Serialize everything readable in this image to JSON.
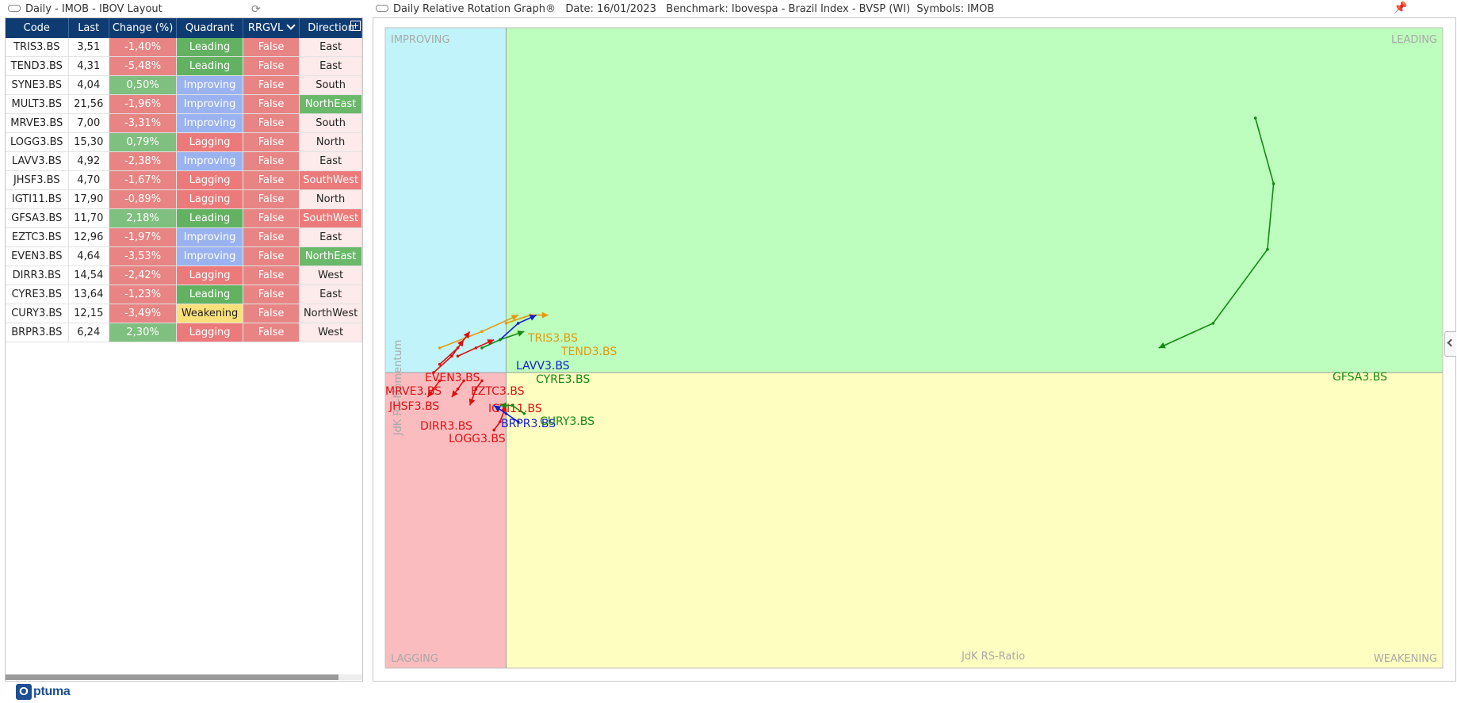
{
  "left_panel": {
    "title": "Daily - IMOB - IBOV Layout",
    "icon": "layout-icon",
    "refresh_icon": "refresh-icon",
    "columns": [
      "Code",
      "Last",
      "Change (%)",
      "Quadrant",
      "RRGVL",
      "Direction"
    ],
    "rows": [
      {
        "code": "TRIS3.BS",
        "last": "3,51",
        "change": "-1,40%",
        "quadrant": "Leading",
        "rrgvl": "False",
        "direction": "East"
      },
      {
        "code": "TEND3.BS",
        "last": "4,31",
        "change": "-5,48%",
        "quadrant": "Leading",
        "rrgvl": "False",
        "direction": "East"
      },
      {
        "code": "SYNE3.BS",
        "last": "4,04",
        "change": "0,50%",
        "quadrant": "Improving",
        "rrgvl": "False",
        "direction": "South"
      },
      {
        "code": "MULT3.BS",
        "last": "21,56",
        "change": "-1,96%",
        "quadrant": "Improving",
        "rrgvl": "False",
        "direction": "NorthEast"
      },
      {
        "code": "MRVE3.BS",
        "last": "7,00",
        "change": "-3,31%",
        "quadrant": "Improving",
        "rrgvl": "False",
        "direction": "South"
      },
      {
        "code": "LOGG3.BS",
        "last": "15,30",
        "change": "0,79%",
        "quadrant": "Lagging",
        "rrgvl": "False",
        "direction": "North"
      },
      {
        "code": "LAVV3.BS",
        "last": "4,92",
        "change": "-2,38%",
        "quadrant": "Improving",
        "rrgvl": "False",
        "direction": "East"
      },
      {
        "code": "JHSF3.BS",
        "last": "4,70",
        "change": "-1,67%",
        "quadrant": "Lagging",
        "rrgvl": "False",
        "direction": "SouthWest"
      },
      {
        "code": "IGTI11.BS",
        "last": "17,90",
        "change": "-0,89%",
        "quadrant": "Lagging",
        "rrgvl": "False",
        "direction": "North"
      },
      {
        "code": "GFSA3.BS",
        "last": "11,70",
        "change": "2,18%",
        "quadrant": "Leading",
        "rrgvl": "False",
        "direction": "SouthWest"
      },
      {
        "code": "EZTC3.BS",
        "last": "12,96",
        "change": "-1,97%",
        "quadrant": "Improving",
        "rrgvl": "False",
        "direction": "East"
      },
      {
        "code": "EVEN3.BS",
        "last": "4,64",
        "change": "-3,53%",
        "quadrant": "Improving",
        "rrgvl": "False",
        "direction": "NorthEast"
      },
      {
        "code": "DIRR3.BS",
        "last": "14,54",
        "change": "-2,42%",
        "quadrant": "Lagging",
        "rrgvl": "False",
        "direction": "West"
      },
      {
        "code": "CYRE3.BS",
        "last": "13,64",
        "change": "-1,23%",
        "quadrant": "Leading",
        "rrgvl": "False",
        "direction": "East"
      },
      {
        "code": "CURY3.BS",
        "last": "12,15",
        "change": "-3,49%",
        "quadrant": "Weakening",
        "rrgvl": "False",
        "direction": "NorthWest"
      },
      {
        "code": "BRPR3.BS",
        "last": "6,24",
        "change": "2,30%",
        "quadrant": "Lagging",
        "rrgvl": "False",
        "direction": "West"
      }
    ]
  },
  "right_panel": {
    "title": "Daily Relative Rotation Graph®",
    "date": "Date: 16/01/2023",
    "benchmark": "Benchmark: Ibovespa - Brazil Index - BVSP (WI)",
    "symbols": "Symbols: IMOB",
    "pin_icon": "pin-icon"
  },
  "chart_data": {
    "type": "scatter",
    "xlabel": "JdK RS-Ratio",
    "ylabel": "JdK RS-Momentum",
    "quadrants": {
      "improving": "IMPROVING",
      "leading": "LEADING",
      "lagging": "LAGGING",
      "weakening": "WEAKENING"
    },
    "quadrant_colors": {
      "improving": "#c0f4fa",
      "leading": "#bdfdbd",
      "lagging": "#fbbcbf",
      "weakening": "#fefec0"
    },
    "center": {
      "x": 100,
      "y": 100
    },
    "xlim": [
      98.0,
      115.5
    ],
    "ylim": [
      96.4,
      104.2
    ],
    "series": [
      {
        "name": "TRIS3.BS",
        "color": "#e39a10",
        "points": [
          [
            98.9,
            100.3
          ],
          [
            99.6,
            100.5
          ],
          [
            100.2,
            100.7
          ]
        ]
      },
      {
        "name": "TEND3.BS",
        "color": "#e39a10",
        "points": [
          [
            100.0,
            100.6
          ],
          [
            100.4,
            100.7
          ],
          [
            100.7,
            100.7
          ]
        ]
      },
      {
        "name": "LAVV3.BS",
        "color": "#0f1fd0",
        "points": [
          [
            99.9,
            100.4
          ],
          [
            100.2,
            100.6
          ],
          [
            100.5,
            100.7
          ]
        ]
      },
      {
        "name": "CYRE3.BS",
        "color": "#138a13",
        "points": [
          [
            99.6,
            100.3
          ],
          [
            99.9,
            100.4
          ],
          [
            100.3,
            100.5
          ]
        ]
      },
      {
        "name": "EVEN3.BS",
        "color": "#dd1010",
        "points": [
          [
            98.9,
            100.1
          ],
          [
            99.2,
            100.3
          ],
          [
            99.4,
            100.5
          ]
        ]
      },
      {
        "name": "MRVE3.BS",
        "color": "#dd1010",
        "points": [
          [
            98.8,
            100.0
          ],
          [
            99.1,
            100.2
          ],
          [
            99.3,
            100.4
          ]
        ]
      },
      {
        "name": "JHSF3.BS",
        "color": "#dd1010",
        "points": [
          [
            98.9,
            99.9
          ],
          [
            98.8,
            99.8
          ],
          [
            98.7,
            99.7
          ]
        ]
      },
      {
        "name": "EZTC3.BS",
        "color": "#dd1010",
        "points": [
          [
            99.2,
            100.2
          ],
          [
            99.5,
            100.3
          ],
          [
            99.8,
            100.4
          ]
        ]
      },
      {
        "name": "IGTI11.BS",
        "color": "#dd1010",
        "points": [
          [
            99.6,
            99.9
          ],
          [
            99.5,
            99.8
          ],
          [
            99.4,
            99.6
          ]
        ]
      },
      {
        "name": "DIRR3.BS",
        "color": "#dd1010",
        "points": [
          [
            99.3,
            99.9
          ],
          [
            99.2,
            99.8
          ],
          [
            99.1,
            99.7
          ]
        ]
      },
      {
        "name": "LOGG3.BS",
        "color": "#dd1010",
        "points": [
          [
            99.8,
            99.3
          ],
          [
            99.9,
            99.4
          ],
          [
            100.0,
            99.6
          ]
        ]
      },
      {
        "name": "BRPR3.BS",
        "color": "#0f1fd0",
        "points": [
          [
            100.2,
            99.4
          ],
          [
            100.0,
            99.5
          ],
          [
            99.8,
            99.6
          ]
        ]
      },
      {
        "name": "CURY3.BS",
        "color": "#138a13",
        "points": [
          [
            100.3,
            99.5
          ],
          [
            100.1,
            99.6
          ],
          [
            99.9,
            99.6
          ]
        ]
      },
      {
        "name": "GFSA3.BS",
        "color": "#138a13",
        "points": [
          [
            112.4,
            103.1
          ],
          [
            112.7,
            102.3
          ],
          [
            112.6,
            101.5
          ],
          [
            111.7,
            100.6
          ],
          [
            110.8,
            100.3
          ]
        ]
      }
    ]
  }
}
